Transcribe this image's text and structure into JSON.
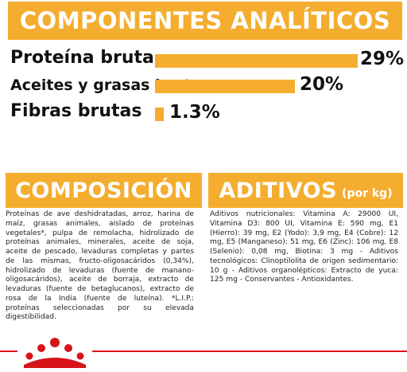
{
  "analytics": {
    "title": "COMPONENTES ANALÍTICOS",
    "rows": [
      {
        "label": "Proteína bruta",
        "value": "29%",
        "level": 29
      },
      {
        "label": "Aceites y grasas brutos",
        "value": "20%",
        "level": 20
      },
      {
        "label": "Fibras brutas",
        "value": "1.3%",
        "level": 1.3
      }
    ]
  },
  "composition": {
    "title": "COMPOSICIÓN",
    "text": "Proteínas de ave deshidratadas, arroz, harina de maíz, grasas animales, aislado de proteínas vegetales*, pulpa de remolacha, hidrolizado de proteínas animales, minerales, aceite de soja, aceite de pescado, levaduras completas y partes de las mismas, fructo-oligosacáridos (0,34%), hidrolizado de levaduras (fuente de manano-oligosacáridos), aceite de borraja, extracto de levaduras (fuente de betaglucanos), extracto de rosa de la India (fuente de luteína). *L.I.P.: proteínas seleccionadas por su elevada digestibilidad."
  },
  "additives": {
    "title": "ADITIVOS",
    "subtitle": "(por kg)",
    "text": "Aditivos nutricionales: Vitamina A: 29000 UI, Vitamina D3: 800 UI, Vitamina E: 590 mg, E1 (Hierro): 39 mg, E2 (Yodo): 3,9 mg, E4 (Cobre): 12 mg, E5 (Manganeso): 51 mg, E6 (Zinc): 106 mg, E8 (Selenio): 0,08 mg, Biotina: 3 mg - Aditivos tecnológicos: Clinoptilolita de origen sedimentario: 10 g - Aditivos organolépticos: Extracto de yuca: 125 mg - Conservantes - Antioxidantes."
  },
  "colors": {
    "accent": "#f4ad2f",
    "footer": "#d7141a"
  },
  "icons": {
    "brand": "crown-icon"
  }
}
